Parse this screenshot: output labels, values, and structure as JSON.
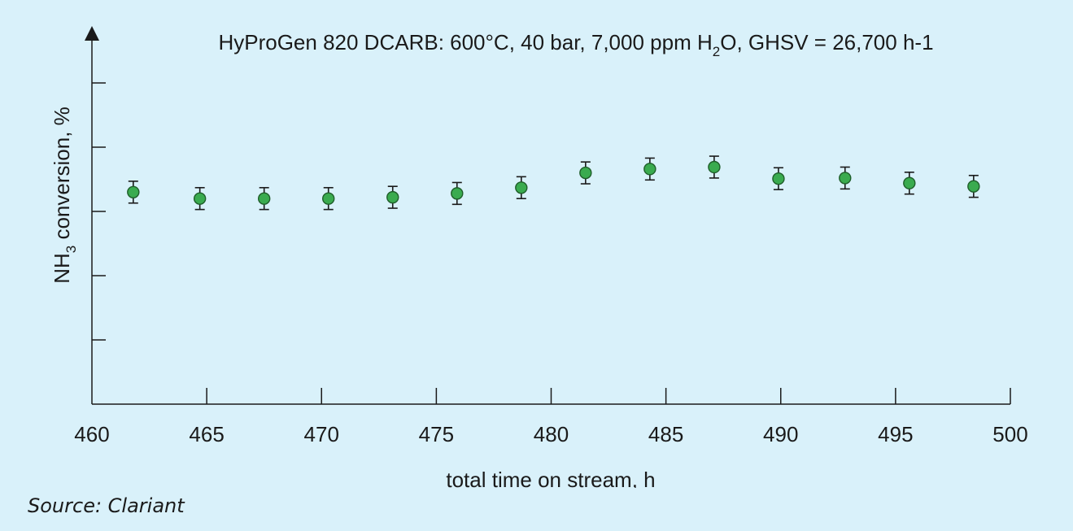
{
  "chart_data": {
    "type": "scatter",
    "title_parts": {
      "pre": "HyProGen 820 DCARB: 600°C, 40 bar, 7,000 ppm H",
      "sub": "2",
      "post": "O, GHSV = 26,700 h-1"
    },
    "xlabel": "total time on stream, h",
    "ylabel_parts": {
      "pre": "NH",
      "sub": "3",
      "post": " conversion, %"
    },
    "xlim": [
      460,
      500
    ],
    "x_ticks": [
      460,
      465,
      470,
      475,
      480,
      485,
      490,
      495,
      500
    ],
    "x_tick_labels": [
      "460",
      "465",
      "470",
      "475",
      "480",
      "485",
      "490",
      "495",
      "500"
    ],
    "y_tick_count": 5,
    "grid": false,
    "series": [
      {
        "marker_color": "#3aab4f",
        "x": [
          461.8,
          464.7,
          467.5,
          470.3,
          473.1,
          475.9,
          478.7,
          481.5,
          484.3,
          487.1,
          489.9,
          492.8,
          495.6,
          498.4
        ],
        "y": [
          3.3,
          3.2,
          3.2,
          3.2,
          3.22,
          3.28,
          3.37,
          3.6,
          3.66,
          3.69,
          3.51,
          3.52,
          3.44,
          3.39
        ],
        "error": 0.17
      }
    ],
    "ylim": [
      0,
      5.3
    ]
  },
  "source": "Source: Clariant",
  "colors": {
    "background": "#d9f1fa",
    "axis": "#1a1a1a",
    "marker": "#3aab4f"
  }
}
